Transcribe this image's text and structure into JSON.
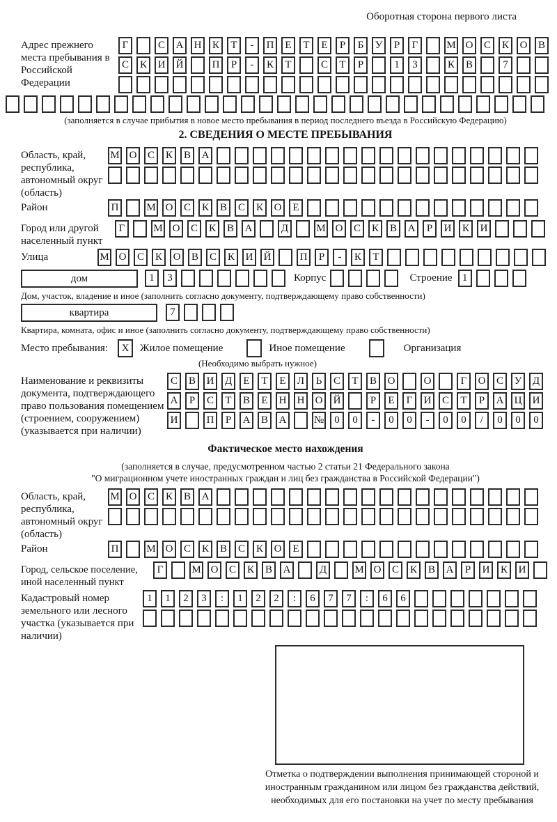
{
  "page": {
    "side_note": "Оборотная сторона первого листа"
  },
  "prev_address": {
    "label": "Адрес прежнего места пребывания в Российской Федерации",
    "rows": [
      {
        "count": 24,
        "text": "Г САНКТ-ПЕТЕРБУРГ МОСКОВ"
      },
      {
        "count": 24,
        "text": "СКИЙ ПР-КТ СТР 13 КВ 7"
      },
      {
        "count": 24,
        "text": ""
      },
      {
        "count": 30,
        "text": ""
      }
    ],
    "note": "(заполняется в случае прибытия в новое место пребывания в период последнего въезда в Российскую Федерацию)"
  },
  "section2": {
    "title": "2. СВЕДЕНИЯ О МЕСТЕ ПРЕБЫВАНИЯ",
    "region": {
      "label": "Область, край, республика, автономный округ (область)",
      "rows": [
        {
          "count": 24,
          "text": "МОСКВА"
        },
        {
          "count": 24,
          "text": ""
        }
      ]
    },
    "district": {
      "label": "Район",
      "row": {
        "count": 24,
        "text": "П МОСКВСКОЕ"
      }
    },
    "city": {
      "label": "Город или другой населенный пункт",
      "row": {
        "count": 24,
        "text": "Г МОСКВА Д МОСКВАРИКИ"
      }
    },
    "street": {
      "label": "Улица",
      "row": {
        "count": 25,
        "text": "МОСКОВСКИЙ ПР-КТ"
      }
    },
    "house": {
      "box_label": "дом",
      "number": {
        "count": 8,
        "text": "13"
      },
      "korpus_label": "Корпус",
      "korpus": {
        "count": 4,
        "text": ""
      },
      "stroenie_label": "Строение",
      "stroenie": {
        "count": 4,
        "text": "1"
      }
    },
    "house_note": "Дом, участок, владение и иное (заполнить согласно документу, подтверждающему право собственности)",
    "apartment": {
      "box_label": "квартира",
      "cells": {
        "count": 4,
        "text": "7"
      }
    },
    "apartment_note": "Квартира, комната, офис и иное (заполнить согласно документу, подтверждающему право собственности)",
    "stay_type": {
      "label": "Место пребывания:",
      "options": [
        {
          "label": "Жилое помещение",
          "mark": "X"
        },
        {
          "label": "Иное помещение",
          "mark": ""
        },
        {
          "label": "Организация",
          "mark": ""
        }
      ],
      "note": "(Необходимо выбрать нужное)"
    },
    "doc": {
      "label": "Наименование и реквизиты документа, подтверждающего право пользования помещением (строением, сооружением) (указывается при наличии)",
      "rows": [
        {
          "count": 21,
          "text": "СВИДЕТЕЛЬСТВО О ГОСУД"
        },
        {
          "count": 21,
          "text": "АРСТВЕННОЙ РЕГИСТРАЦИ"
        },
        {
          "count": 21,
          "text": "И ПРАВА №00-00-00/000"
        }
      ]
    }
  },
  "actual_location": {
    "title": "Фактическое место нахождения",
    "note_line1": "(заполняется в случае, предусмотренном частью 2 статьи 21 Федерального закона",
    "note_line2": "\"О миграционном учете иностранных граждан и лиц без гражданства в Российской Федерации\")",
    "region": {
      "label": "Область, край, республика, автономный округ (область)",
      "rows": [
        {
          "count": 24,
          "text": "МОСКВА"
        },
        {
          "count": 24,
          "text": ""
        }
      ]
    },
    "district": {
      "label": "Район",
      "row": {
        "count": 24,
        "text": "П МОСКВСКОЕ"
      }
    },
    "city": {
      "label": "Город, сельское поселение, иной населенный пункт",
      "row": {
        "count": 22,
        "text": "Г МОСКВА Д МОСКВАРИКИ"
      }
    },
    "cadastral": {
      "label": "Кадастровый номер земельного или лесного участка (указывается при наличии)",
      "rows": [
        {
          "count": 22,
          "text": "1123:122:677:66"
        },
        {
          "count": 22,
          "text": ""
        }
      ]
    }
  },
  "stamp": {
    "caption": "Отметка о подтверждении выполнения принимающей стороной и иностранным гражданином или лицом без гражданства действий, необходимых для его постановки на учет по месту пребывания"
  }
}
